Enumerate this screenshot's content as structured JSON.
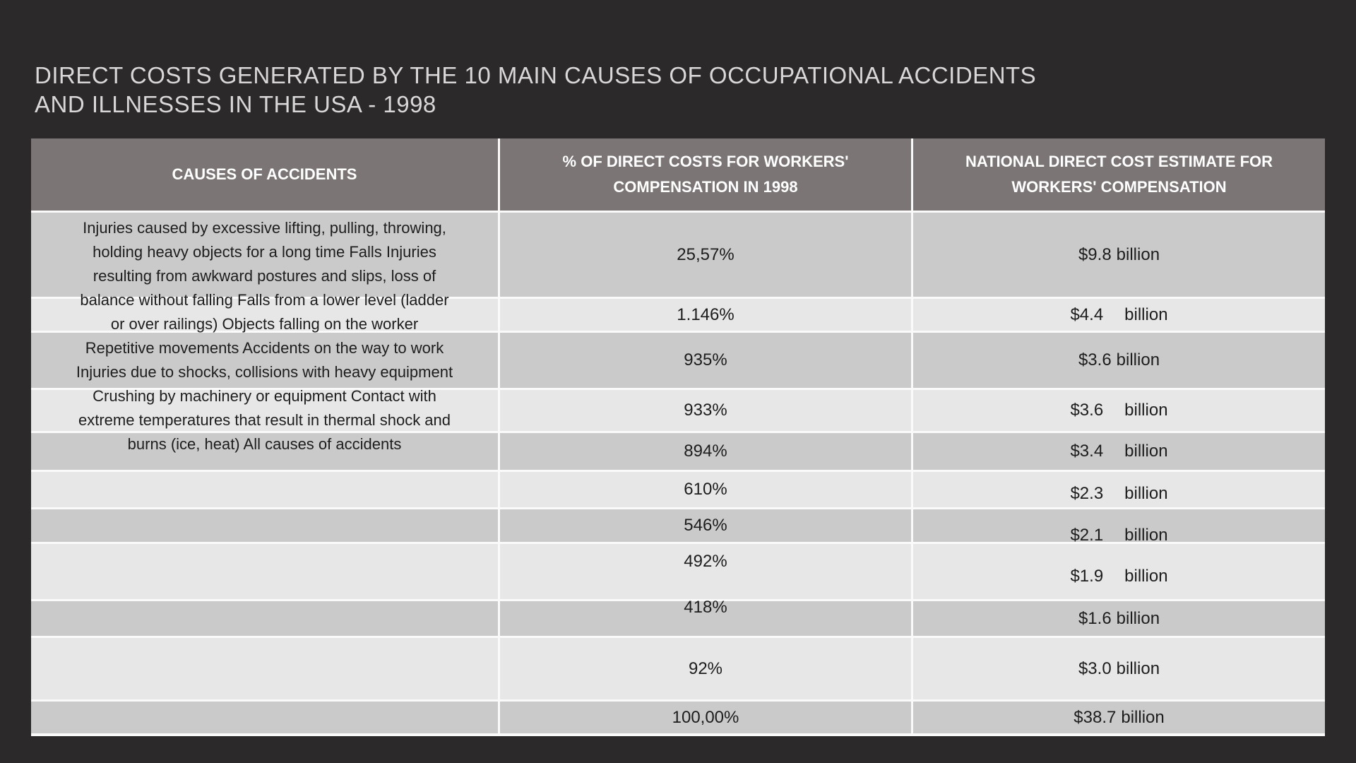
{
  "page": {
    "background": "#2b2929",
    "title_lines": [
      "DIRECT COSTS GENERATED BY THE 10 MAIN CAUSES OF OCCUPATIONAL ACCIDENTS",
      "AND ILLNESSES IN THE USA - 1998"
    ]
  },
  "table": {
    "headers": {
      "causes": "CAUSES OF ACCIDENTS",
      "pct": "% OF DIRECT COSTS FOR WORKERS' COMPENSATION IN 1998",
      "cost": "NATIONAL DIRECT COST ESTIMATE FOR WORKERS' COMPENSATION"
    },
    "causes_lines": [
      "Injuries caused by excessive lifting, pulling, throwing,",
      "holding heavy objects for a long time Falls Injuries",
      "resulting from awkward postures and slips, loss of",
      "balance without falling Falls from a lower level (ladder",
      "or over railings) Objects falling on the worker",
      "Repetitive movements Accidents on the way to work",
      "Injuries due to shocks, collisions with heavy equipment",
      "Crushing by machinery or equipment Contact with",
      "extreme temperatures that result in thermal shock and",
      "burns (ice, heat) All causes of accidents"
    ],
    "rows": [
      {
        "pct": "25,57%",
        "amount": "$9.8",
        "unit": "billion"
      },
      {
        "pct": "1.146%",
        "amount": "$4.4",
        "unit": "billion"
      },
      {
        "pct": "935%",
        "amount": "$3.6",
        "unit": "billion"
      },
      {
        "pct": "933%",
        "amount": "$3.6",
        "unit": "billion"
      },
      {
        "pct": "894%",
        "amount": "$3.4",
        "unit": "billion"
      },
      {
        "pct": "610%",
        "amount": "$2.3",
        "unit": "billion"
      },
      {
        "pct": "546%",
        "amount": "$2.1",
        "unit": "billion"
      },
      {
        "pct": "492%",
        "amount": "$1.9",
        "unit": "billion"
      },
      {
        "pct": "418%",
        "amount": "$1.6",
        "unit": "billion"
      },
      {
        "pct": "92%",
        "amount": "$3.0",
        "unit": "billion"
      },
      {
        "pct": "100,00%",
        "amount": "$38.7",
        "unit": "billion"
      }
    ],
    "colors": {
      "header_bg": "#7b7575",
      "header_text": "#ffffff",
      "row_dark": "#cbcaca",
      "row_light": "#e8e7e7",
      "body_text": "#1d1d1d",
      "divider": "#fafafa"
    }
  },
  "chart_data": {
    "type": "table",
    "title": "DIRECT COSTS GENERATED BY THE 10 MAIN CAUSES OF OCCUPATIONAL ACCIDENTS AND ILLNESSES IN THE USA - 1998",
    "columns": [
      "CAUSES OF ACCIDENTS",
      "% OF DIRECT COSTS FOR WORKERS' COMPENSATION IN 1998",
      "NATIONAL DIRECT COST ESTIMATE FOR WORKERS' COMPENSATION"
    ],
    "causes_text_block": "Injuries caused by excessive lifting, pulling, throwing, holding heavy objects for a long time Falls Injuries resulting from awkward postures and slips, loss of balance without falling Falls from a lower level (ladder or over railings) Objects falling on the worker Repetitive movements Accidents on the way to work Injuries due to shocks, collisions with heavy equipment Crushing by machinery or equipment Contact with extreme temperatures that result in thermal shock and burns (ice, heat) All causes of accidents",
    "rows": [
      [
        "25,57%",
        "$9.8 billion"
      ],
      [
        "1.146%",
        "$4.4 billion"
      ],
      [
        "935%",
        "$3.6 billion"
      ],
      [
        "933%",
        "$3.6 billion"
      ],
      [
        "894%",
        "$3.4 billion"
      ],
      [
        "610%",
        "$2.3 billion"
      ],
      [
        "546%",
        "$2.1 billion"
      ],
      [
        "492%",
        "$1.9 billion"
      ],
      [
        "418%",
        "$1.6 billion"
      ],
      [
        "92%",
        "$3.0 billion"
      ],
      [
        "100,00%",
        "$38.7 billion"
      ]
    ]
  }
}
